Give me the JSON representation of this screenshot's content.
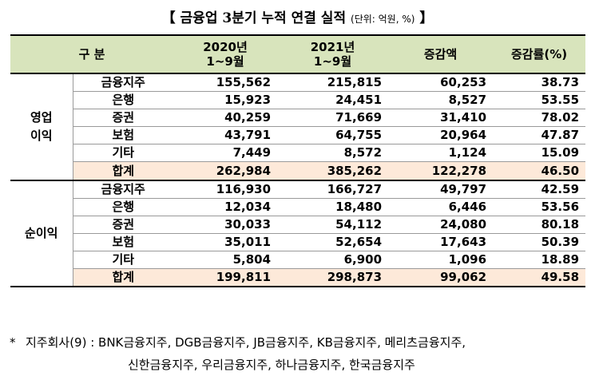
{
  "title": {
    "main": "【 금융업 3분기 누적 연결 실적",
    "unit": "(단위: 억원, %)",
    "close": " 】"
  },
  "headers": {
    "category": "구    분",
    "col2020_line1": "2020년",
    "col2020_line2": "1~9월",
    "col2021_line1": "2021년",
    "col2021_line2": "1~9월",
    "change": "증감액",
    "rate": "증감률(%)"
  },
  "groups": [
    {
      "label_line1": "영업",
      "label_line2": "이익",
      "rows": [
        {
          "cat": "금융지주",
          "y2020": "155,562",
          "y2021": "215,815",
          "change": "60,253",
          "rate": "38.73"
        },
        {
          "cat": "은행",
          "y2020": "15,923",
          "y2021": "24,451",
          "change": "8,527",
          "rate": "53.55"
        },
        {
          "cat": "증권",
          "y2020": "40,259",
          "y2021": "71,669",
          "change": "31,410",
          "rate": "78.02"
        },
        {
          "cat": "보험",
          "y2020": "43,791",
          "y2021": "64,755",
          "change": "20,964",
          "rate": "47.87"
        },
        {
          "cat": "기타",
          "y2020": "7,449",
          "y2021": "8,572",
          "change": "1,124",
          "rate": "15.09"
        },
        {
          "cat": "합계",
          "y2020": "262,984",
          "y2021": "385,262",
          "change": "122,278",
          "rate": "46.50"
        }
      ]
    },
    {
      "label_line1": "순이익",
      "label_line2": "",
      "rows": [
        {
          "cat": "금융지주",
          "y2020": "116,930",
          "y2021": "166,727",
          "change": "49,797",
          "rate": "42.59"
        },
        {
          "cat": "은행",
          "y2020": "12,034",
          "y2021": "18,480",
          "change": "6,446",
          "rate": "53.56"
        },
        {
          "cat": "증권",
          "y2020": "30,033",
          "y2021": "54,112",
          "change": "24,080",
          "rate": "80.18"
        },
        {
          "cat": "보험",
          "y2020": "35,011",
          "y2021": "52,654",
          "change": "17,643",
          "rate": "50.39"
        },
        {
          "cat": "기타",
          "y2020": "5,804",
          "y2021": "6,900",
          "change": "1,096",
          "rate": "18.89"
        },
        {
          "cat": "합계",
          "y2020": "199,811",
          "y2021": "298,873",
          "change": "99,062",
          "rate": "49.58"
        }
      ]
    }
  ],
  "footnote": {
    "mark": "*",
    "line1": "지주회사(9) : BNK금융지주, DGB금융지주, JB금융지주, KB금융지주, 메리츠금융지주,",
    "line2": "신한금융지주, 우리금융지주, 하나금융지주, 한국금융지주"
  }
}
